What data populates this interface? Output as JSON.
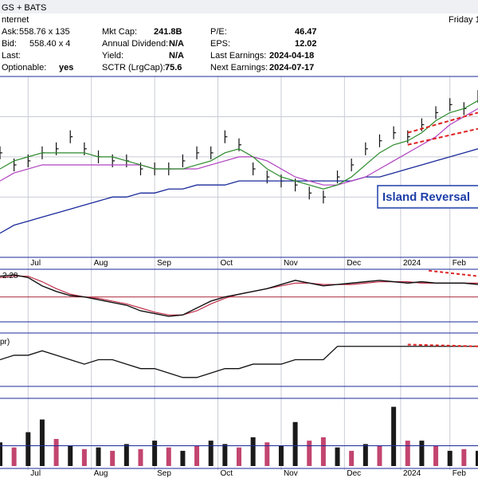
{
  "header": {
    "title_fragment": "GS + BATS",
    "day_fragment": "Friday 1",
    "exchange_fragment": "nternet"
  },
  "quote": {
    "ask_label": "Ask:",
    "ask_value": "558.76 x 135",
    "bid_label": "Bid:",
    "bid_value": "558.40 x 4",
    "last_label": "Last:",
    "last_value": "",
    "optionable_label": "Optionable:",
    "optionable_value": "yes",
    "mktcap_label": "Mkt Cap:",
    "mktcap_value": "241.8B",
    "dividend_label": "Annual Dividend:",
    "dividend_value": "N/A",
    "yield_label": "Yield:",
    "yield_value": "N/A",
    "sctr_label": "SCTR (LrgCap):",
    "sctr_value": "75.6",
    "pe_label": "P/E:",
    "pe_value": "46.47",
    "eps_label": "EPS:",
    "eps_value": "12.02",
    "last_earnings_label": "Last Earnings:",
    "last_earnings_value": "2024-04-18",
    "next_earnings_label": "Next Earnings:",
    "next_earnings_value": "2024-07-17"
  },
  "annotation": {
    "text": "Island Reversal",
    "color": "#1e3fa8"
  },
  "panels": {
    "macd_label_fragment": "2.28",
    "roc_label_fragment": "pr)"
  },
  "colors": {
    "price_bar": "#111111",
    "ma_short": "#2a8a2a",
    "ma_mid": "#b040c0",
    "ma_long": "#1a2a9a",
    "trendline": "#dd2222",
    "macd_signal": "#c0304a",
    "zero_line": "#aa2233",
    "grid": "#c9ccd6",
    "panel_sep": "#1a2a9a",
    "vol_up": "#1a1a1a",
    "vol_down": "#c2456f",
    "vol_avg": "#1a2a9a"
  },
  "chart_data": {
    "type": "line",
    "x_ticks": [
      "Jul",
      "Aug",
      "Sep",
      "Oct",
      "Nov",
      "Dec",
      "2024",
      "Feb",
      "Mar"
    ],
    "price": {
      "x": [
        0,
        4,
        8,
        12,
        16,
        20,
        24,
        28,
        32,
        36,
        40,
        44,
        48,
        52,
        56,
        60,
        64,
        68,
        72,
        76,
        80,
        84,
        88,
        92,
        96,
        100,
        104,
        108,
        112,
        116,
        120,
        124,
        128,
        132,
        136
      ],
      "close": [
        236,
        233,
        234,
        236,
        237,
        240,
        237,
        235,
        234,
        234,
        232,
        232,
        232,
        234,
        236,
        236,
        240,
        238,
        232,
        230,
        229,
        228,
        226,
        225,
        230,
        233,
        237,
        239,
        241,
        240,
        243,
        246,
        248,
        247,
        250
      ],
      "ma_short": [
        232,
        234,
        235,
        236,
        236,
        236,
        236,
        235,
        235,
        234,
        233,
        232,
        232,
        232,
        233,
        234,
        236,
        237,
        235,
        232,
        230,
        229,
        228,
        227,
        228,
        230,
        233,
        236,
        238,
        239,
        241,
        244,
        246,
        247,
        249
      ],
      "ma_mid": [
        229,
        231,
        232,
        233,
        233,
        233,
        233,
        233,
        233,
        233,
        233,
        232,
        232,
        232,
        232,
        233,
        234,
        235,
        235,
        234,
        232,
        230,
        229,
        228,
        228,
        229,
        230,
        232,
        234,
        236,
        238,
        240,
        243,
        245,
        247
      ],
      "ma_long": [
        216,
        218,
        219,
        220,
        221,
        222,
        223,
        224,
        225,
        225,
        226,
        226,
        227,
        227,
        228,
        228,
        228,
        229,
        229,
        229,
        229,
        229,
        229,
        229,
        229,
        229,
        230,
        230,
        231,
        232,
        233,
        234,
        235,
        236,
        237
      ]
    },
    "macd": {
      "values": [
        1.5,
        1.6,
        1.4,
        0.8,
        0.4,
        0.1,
        0.0,
        -0.2,
        -0.4,
        -0.6,
        -1.0,
        -1.2,
        -1.4,
        -1.3,
        -0.8,
        -0.3,
        0.0,
        0.2,
        0.4,
        0.6,
        0.9,
        1.2,
        1.0,
        0.8,
        0.9,
        1.0,
        1.1,
        1.2,
        1.1,
        1.0,
        1.1,
        1.0,
        1.0,
        1.0,
        0.9
      ],
      "signal": [
        1.4,
        1.5,
        1.5,
        1.1,
        0.6,
        0.2,
        0.0,
        -0.1,
        -0.3,
        -0.5,
        -0.8,
        -1.1,
        -1.3,
        -1.3,
        -1.0,
        -0.5,
        -0.1,
        0.2,
        0.4,
        0.6,
        0.8,
        1.0,
        1.0,
        0.9,
        0.9,
        0.9,
        1.0,
        1.1,
        1.1,
        1.1,
        1.0,
        1.0,
        1.0,
        1.0,
        1.0
      ]
    },
    "roc": {
      "values": [
        2,
        3,
        3,
        4,
        3,
        2,
        1,
        2,
        2,
        1,
        0,
        0,
        -1,
        -2,
        -2,
        -1,
        0,
        0,
        1,
        1,
        1,
        2,
        2,
        2,
        5,
        5,
        5,
        5,
        5,
        5,
        5,
        5,
        5,
        5,
        5
      ]
    },
    "volume": {
      "values": [
        28,
        22,
        40,
        55,
        32,
        24,
        20,
        22,
        18,
        26,
        20,
        30,
        22,
        18,
        24,
        30,
        26,
        22,
        34,
        28,
        24,
        52,
        30,
        34,
        22,
        18,
        26,
        24,
        70,
        30,
        30,
        24,
        18,
        20,
        18
      ],
      "up": [
        true,
        false,
        true,
        true,
        false,
        true,
        false,
        true,
        false,
        true,
        false,
        true,
        false,
        true,
        false,
        true,
        true,
        false,
        true,
        false,
        true,
        true,
        false,
        false,
        true,
        false,
        true,
        false,
        true,
        false,
        true,
        false,
        true,
        false,
        true
      ]
    }
  }
}
